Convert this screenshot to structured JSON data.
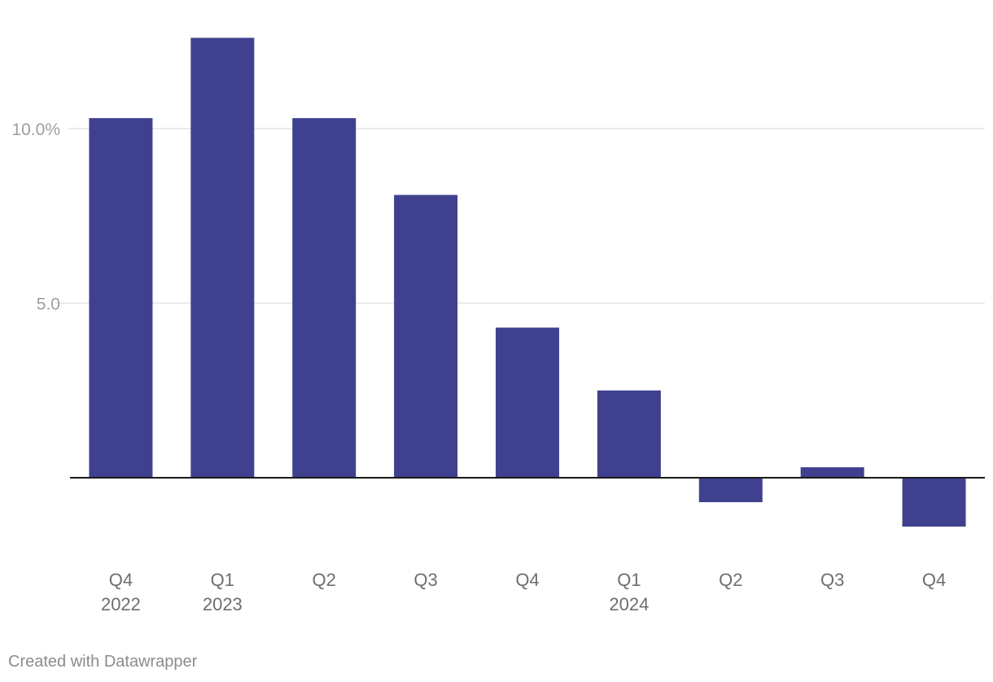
{
  "chart_data": {
    "type": "bar",
    "categories": [
      {
        "quarter": "Q4",
        "year": "2022"
      },
      {
        "quarter": "Q1",
        "year": "2023"
      },
      {
        "quarter": "Q2",
        "year": ""
      },
      {
        "quarter": "Q3",
        "year": ""
      },
      {
        "quarter": "Q4",
        "year": ""
      },
      {
        "quarter": "Q1",
        "year": "2024"
      },
      {
        "quarter": "Q2",
        "year": ""
      },
      {
        "quarter": "Q3",
        "year": ""
      },
      {
        "quarter": "Q4",
        "year": ""
      }
    ],
    "values": [
      10.3,
      12.6,
      10.3,
      8.1,
      4.3,
      2.5,
      -0.7,
      0.3,
      -1.4
    ],
    "title": "",
    "xlabel": "",
    "ylabel": "",
    "ylim": [
      -2.2,
      13.7
    ],
    "yticks": [
      {
        "value": 10,
        "label": "10.0%"
      },
      {
        "value": 5,
        "label": "5.0"
      }
    ],
    "grid": true,
    "bar_color": "#3f418f",
    "grid_color": "#e4e4e4",
    "baseline_color": "#1a1a1a"
  },
  "footer": {
    "credit": "Created with Datawrapper"
  }
}
